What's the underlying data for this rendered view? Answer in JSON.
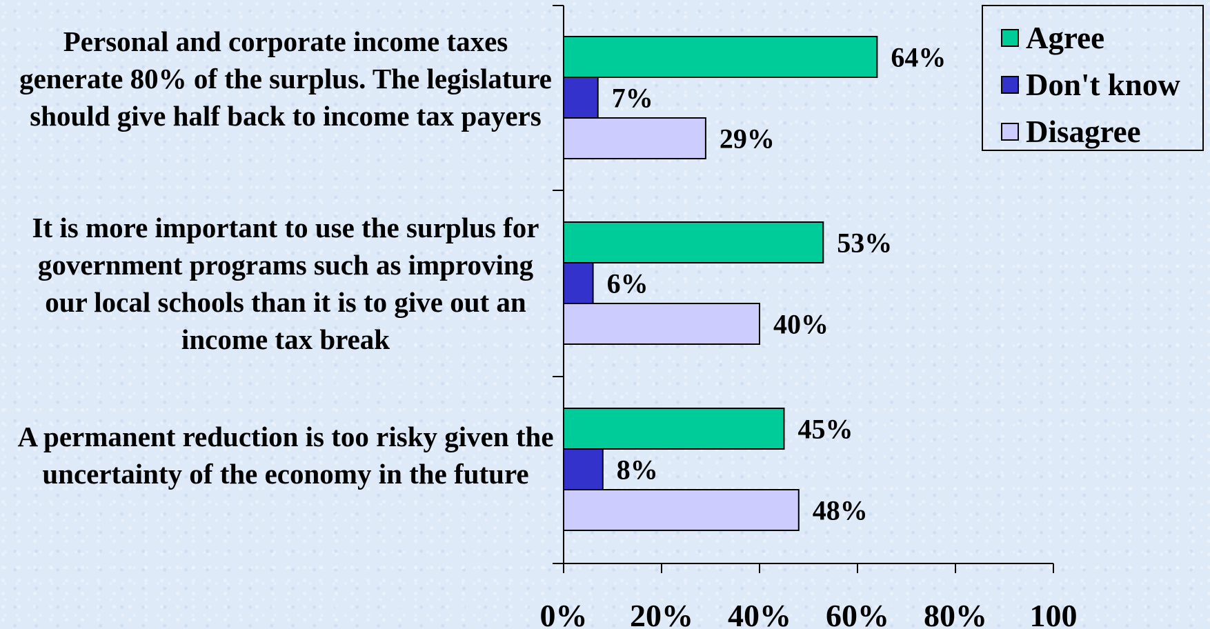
{
  "chart_data": {
    "type": "bar",
    "orientation": "horizontal",
    "categories": [
      "Personal and corporate income taxes generate 80% of the surplus.  The legislature should give half back to income tax payers",
      "It is more important to use the surplus for government programs such as improving our local schools than it is to give out an income tax break",
      "A permanent reduction is too risky given the uncertainty of the economy in the future"
    ],
    "series": [
      {
        "name": "Agree",
        "color": "#00cc99",
        "values": [
          64,
          53,
          45
        ],
        "labels": [
          "64%",
          "53%",
          "45%"
        ]
      },
      {
        "name": "Don't know",
        "color": "#3333cc",
        "values": [
          7,
          6,
          8
        ],
        "labels": [
          "7%",
          "6%",
          "8%"
        ]
      },
      {
        "name": "Disagree",
        "color": "#ccccff",
        "values": [
          29,
          40,
          48
        ],
        "labels": [
          "29%",
          "40%",
          "48%"
        ]
      }
    ],
    "xlim": [
      0,
      100
    ],
    "xticks": [
      0,
      20,
      40,
      60,
      80,
      100
    ],
    "xtick_labels": [
      "0%",
      "20%",
      "40%",
      "60%",
      "80%",
      "100"
    ],
    "legend_position": "top-right",
    "grid": false
  }
}
